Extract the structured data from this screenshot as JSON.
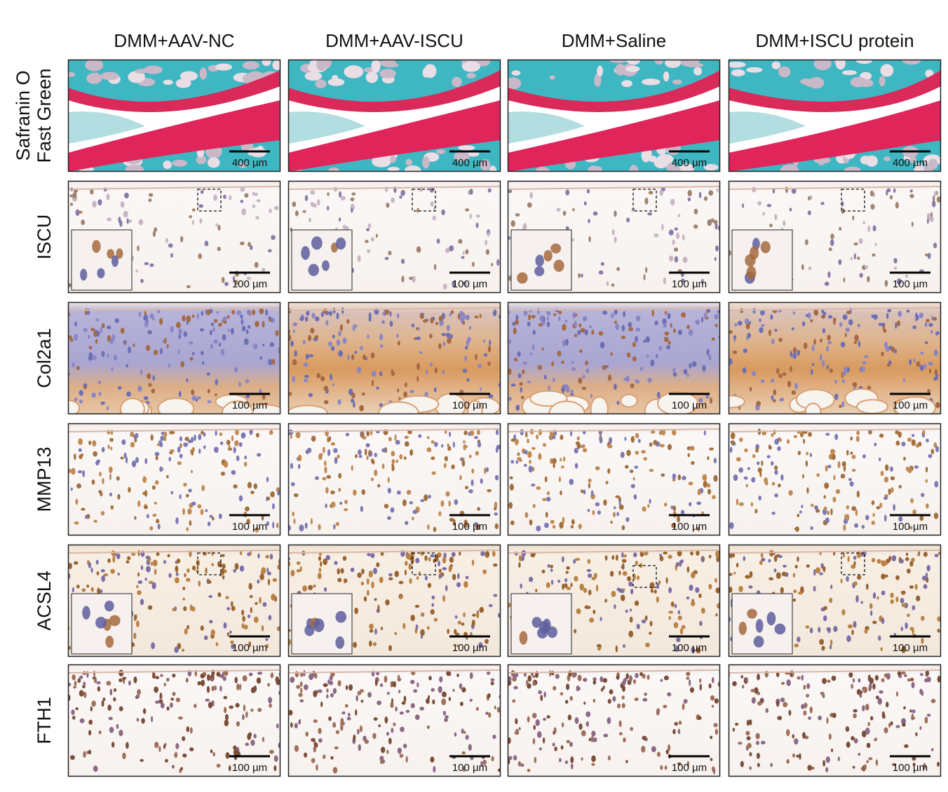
{
  "columns": [
    "DMM+AAV-NC",
    "DMM+AAV-ISCU",
    "DMM+Saline",
    "DMM+ISCU protein"
  ],
  "rows": [
    {
      "label": [
        "Safranin O",
        "Fast Green"
      ],
      "scale_bars": [
        "400 µm",
        "400 µm",
        "400 µm",
        "400 µm"
      ]
    },
    {
      "label": [
        "ISCU"
      ],
      "scale_bars": [
        "100 µm",
        "100 µm",
        "100 µm",
        "100 µm"
      ]
    },
    {
      "label": [
        "Col2a1"
      ],
      "scale_bars": [
        "100 µm",
        "100 µm",
        "100 µm",
        "100 µm"
      ]
    },
    {
      "label": [
        "MMP13"
      ],
      "scale_bars": [
        "100 µm",
        "100 µm",
        "100 µm",
        "100 µm"
      ]
    },
    {
      "label": [
        "ACSL4"
      ],
      "scale_bars": [
        "100 µm",
        "100 µm",
        "100 µm",
        "100 µm"
      ]
    },
    {
      "label": [
        "FTH1"
      ],
      "scale_bars": [
        "100 µm",
        "100 µm",
        "100 µm",
        "100 µm"
      ]
    }
  ]
}
